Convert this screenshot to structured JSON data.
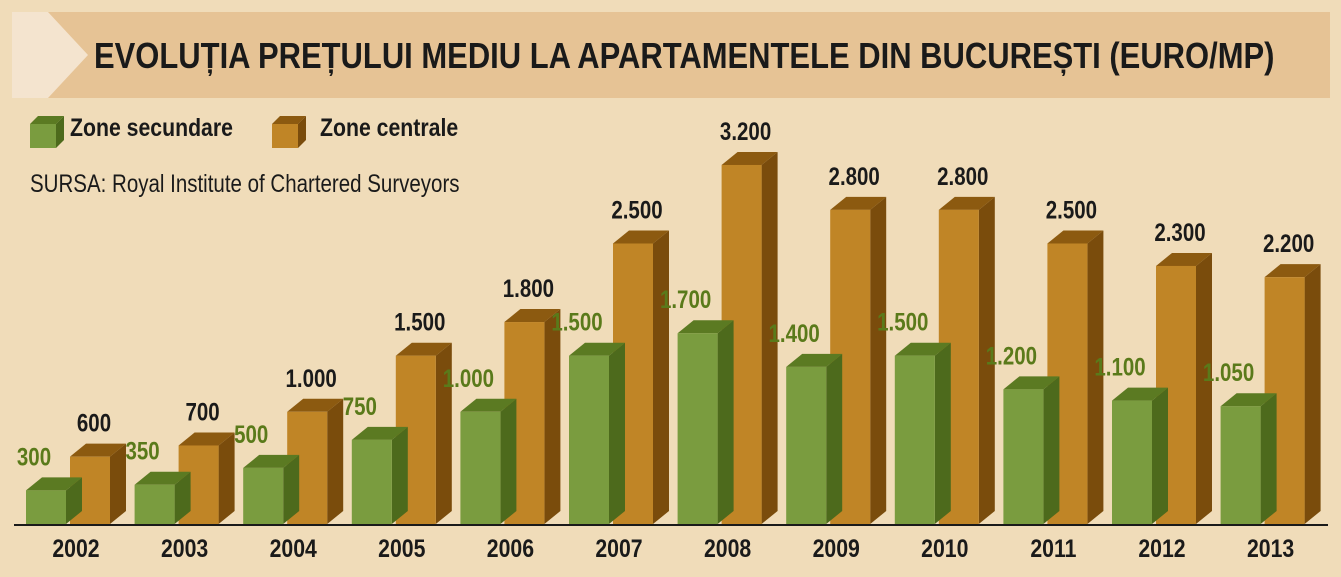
{
  "title": "EVOLUȚIA PREȚULUI MEDIU LA APARTAMENTELE DIN BUCUREȘTI (EURO/MP)",
  "source": "SURSA: Royal Institute of Chartered Surveyors",
  "colors": {
    "background": "#f0dcb9",
    "header": "#e6c395",
    "secondary_front": "#7a9c3f",
    "secondary_top": "#5b7a22",
    "secondary_side": "#4d6a1c",
    "secondary_label": "#5a7a1a",
    "central_front": "#c08526",
    "central_top": "#8c5a10",
    "central_side": "#7a4c0c",
    "central_label": "#1a1a1a"
  },
  "chart_data": {
    "type": "bar",
    "title": "EVOLUȚIA PREȚULUI MEDIU LA APARTAMENTELE DIN BUCUREȘTI (EURO/MP)",
    "xlabel": "",
    "ylabel": "",
    "categories": [
      "2002",
      "2003",
      "2004",
      "2005",
      "2006",
      "2007",
      "2008",
      "2009",
      "2010",
      "2011",
      "2012",
      "2013"
    ],
    "series": [
      {
        "name": "Zone secundare",
        "values": [
          300,
          350,
          500,
          750,
          1000,
          1500,
          1700,
          1400,
          1500,
          1200,
          1100,
          1050
        ],
        "labels": [
          "300",
          "350",
          "500",
          "750",
          "1.000",
          "1.500",
          "1.700",
          "1.400",
          "1.500",
          "1.200",
          "1.100",
          "1.050"
        ]
      },
      {
        "name": "Zone centrale",
        "values": [
          600,
          700,
          1000,
          1500,
          1800,
          2500,
          3200,
          2800,
          2800,
          2500,
          2300,
          2200
        ],
        "labels": [
          "600",
          "700",
          "1.000",
          "1.500",
          "1.800",
          "2.500",
          "3.200",
          "2.800",
          "2.800",
          "2.500",
          "2.300",
          "2.200"
        ]
      }
    ],
    "ylim": [
      0,
      3200
    ],
    "grid": false,
    "legend": "top-left",
    "style": "3d-bar"
  }
}
